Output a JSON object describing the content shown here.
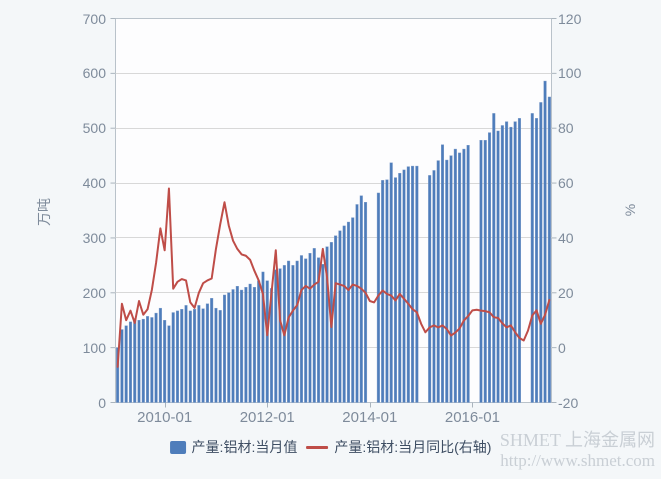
{
  "colors": {
    "page_bg": "#f4f7f9",
    "plot_bg": "#fdfdfe",
    "plot_border": "#b9c2ca",
    "grid": "#d8d8d8",
    "tick": "#aab4bd",
    "bar": "#4e7dbb",
    "bar_edge": "#7e9cc9",
    "line": "#bf4d48",
    "axis_text": "#7e8b9b",
    "legend_text": "#3e4e63",
    "watermark": "#c9cfd5"
  },
  "watermark": {
    "line1": "SHMET 上海金属网",
    "line2": "http://www.shmet.com"
  },
  "chart_data": {
    "type": "combo",
    "grid": "horizontal",
    "legend_position": "bottom-center",
    "x_tick_labels": [
      "2010-01",
      "2012-01",
      "2014-01",
      "2016-01"
    ],
    "axes": {
      "left": {
        "title": "万吨",
        "min": 0,
        "max": 700,
        "ticks": [
          0,
          100,
          200,
          300,
          400,
          500,
          600,
          700
        ]
      },
      "right": {
        "title": "%",
        "min": -20,
        "max": 120,
        "ticks": [
          -20,
          0,
          20,
          40,
          60,
          80,
          100,
          120
        ]
      }
    },
    "months": [
      "2009-02",
      "2009-03",
      "2009-04",
      "2009-05",
      "2009-06",
      "2009-07",
      "2009-08",
      "2009-09",
      "2009-10",
      "2009-11",
      "2009-12",
      "2010-01",
      "2010-02",
      "2010-03",
      "2010-04",
      "2010-05",
      "2010-06",
      "2010-07",
      "2010-08",
      "2010-09",
      "2010-10",
      "2010-11",
      "2010-12",
      "2011-01",
      "2011-02",
      "2011-03",
      "2011-04",
      "2011-05",
      "2011-06",
      "2011-07",
      "2011-08",
      "2011-09",
      "2011-10",
      "2011-11",
      "2011-12",
      "2012-01",
      "2012-02",
      "2012-03",
      "2012-04",
      "2012-05",
      "2012-06",
      "2012-07",
      "2012-08",
      "2012-09",
      "2012-10",
      "2012-11",
      "2012-12",
      "2013-01",
      "2013-02",
      "2013-03",
      "2013-04",
      "2013-05",
      "2013-06",
      "2013-07",
      "2013-08",
      "2013-09",
      "2013-10",
      "2013-11",
      "2013-12",
      "2014-01",
      "2014-02",
      "2014-03",
      "2014-04",
      "2014-05",
      "2014-06",
      "2014-07",
      "2014-08",
      "2014-09",
      "2014-10",
      "2014-11",
      "2014-12",
      "2015-01",
      "2015-02",
      "2015-03",
      "2015-04",
      "2015-05",
      "2015-06",
      "2015-07",
      "2015-08",
      "2015-09",
      "2015-10",
      "2015-11",
      "2015-12",
      "2016-01",
      "2016-02",
      "2016-03",
      "2016-04",
      "2016-05",
      "2016-06",
      "2016-07",
      "2016-08",
      "2016-09",
      "2016-10",
      "2016-11",
      "2016-12",
      "2017-01",
      "2017-02",
      "2017-03",
      "2017-04",
      "2017-05",
      "2017-06",
      "2017-07"
    ],
    "series": [
      {
        "name": "产量:铝材:当月值",
        "type": "bar",
        "axis": "left",
        "unit": "万吨",
        "color": "#4e7dbb",
        "values": [
          100,
          133,
          140,
          147,
          153,
          150,
          152,
          157,
          155,
          163,
          172,
          150,
          140,
          164,
          167,
          170,
          177,
          167,
          170,
          177,
          171,
          180,
          190,
          172,
          168,
          196,
          200,
          206,
          212,
          205,
          210,
          216,
          210,
          222,
          238,
          222,
          208,
          242,
          244,
          250,
          258,
          250,
          258,
          268,
          262,
          272,
          281,
          264,
          252,
          284,
          292,
          304,
          313,
          322,
          329,
          337,
          361,
          377,
          365,
          null,
          null,
          382,
          405,
          406,
          437,
          410,
          418,
          424,
          430,
          431,
          431,
          null,
          null,
          414,
          423,
          441,
          470,
          442,
          450,
          462,
          455,
          462,
          469,
          null,
          null,
          478,
          478,
          492,
          527,
          495,
          505,
          512,
          502,
          512,
          518,
          null,
          null,
          527,
          518,
          547,
          586,
          557
        ]
      },
      {
        "name": "产量:铝材:当月同比(右轴)",
        "type": "line",
        "axis": "right",
        "unit": "%",
        "color": "#bf4d48",
        "values": [
          -7,
          16,
          10,
          13.5,
          9,
          17,
          12,
          14,
          21,
          31,
          43.5,
          35.5,
          58,
          21.5,
          24,
          25,
          24.5,
          16.5,
          14.5,
          20,
          23.5,
          24.5,
          25.2,
          36,
          45,
          53,
          44.5,
          39,
          36,
          34,
          33.5,
          32,
          28,
          24.5,
          19.5,
          4.5,
          20,
          35.5,
          10,
          4.5,
          11,
          13.5,
          15.5,
          21,
          22.5,
          21.5,
          23,
          24,
          36,
          25.5,
          7.5,
          23.5,
          23,
          22.5,
          21,
          23,
          22.5,
          21.5,
          20,
          17,
          16.5,
          19,
          20.8,
          19.6,
          19,
          17.2,
          19.6,
          17.8,
          16,
          14,
          12.9,
          8.7,
          5.6,
          7.4,
          8.1,
          7.4,
          8.1,
          6.8,
          4.4,
          5.5,
          7,
          9.9,
          11.5,
          13.6,
          13.8,
          13.5,
          13.3,
          12.9,
          11.1,
          10.8,
          8.9,
          7.4,
          8.1,
          5.6,
          3.5,
          2.6,
          6.2,
          11.7,
          13.6,
          8.7,
          12,
          17.4
        ]
      }
    ]
  }
}
